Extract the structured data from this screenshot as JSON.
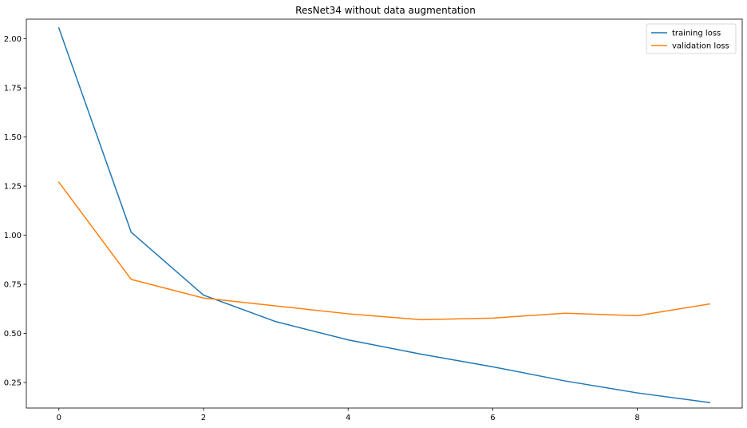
{
  "chart_data": {
    "type": "line",
    "title": "ResNet34 without data augmentation",
    "xlabel": "",
    "ylabel": "",
    "x": [
      0,
      1,
      2,
      3,
      4,
      5,
      6,
      7,
      8,
      9
    ],
    "xlim": [
      -0.45,
      9.45
    ],
    "ylim": [
      0.12,
      2.1
    ],
    "xticks": [
      0,
      2,
      4,
      6,
      8
    ],
    "yticks": [
      0.25,
      0.5,
      0.75,
      1.0,
      1.25,
      1.5,
      1.75,
      2.0
    ],
    "xtick_labels": [
      "0",
      "2",
      "4",
      "6",
      "8"
    ],
    "ytick_labels": [
      "0.25",
      "0.50",
      "0.75",
      "1.00",
      "1.25",
      "1.50",
      "1.75",
      "2.00"
    ],
    "grid": false,
    "legend_position": "top-right",
    "series": [
      {
        "name": "training loss",
        "color": "#1f77b4",
        "values": [
          2.055,
          1.015,
          0.695,
          0.56,
          0.467,
          0.395,
          0.33,
          0.258,
          0.197,
          0.148
        ]
      },
      {
        "name": "validation loss",
        "color": "#ff7f0e",
        "values": [
          1.27,
          0.775,
          0.68,
          0.64,
          0.6,
          0.57,
          0.578,
          0.603,
          0.59,
          0.65
        ]
      }
    ]
  }
}
